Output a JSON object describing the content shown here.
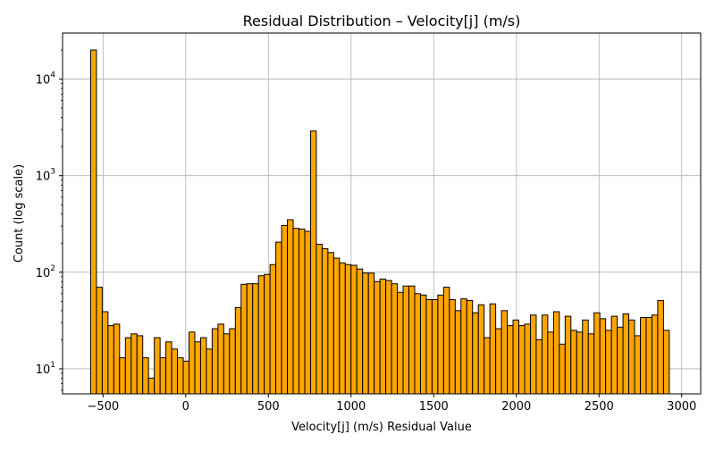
{
  "chart_data": {
    "type": "bar",
    "title": "Residual Distribution – Velocity[j] (m/s)",
    "xlabel": "Velocity[j] (m/s) Residual Value",
    "ylabel": "Count (log scale)",
    "yscale": "log",
    "xlim": [
      -745,
      3115
    ],
    "ylim": [
      5.5,
      30000
    ],
    "grid": true,
    "bar_color": "#FFA500",
    "edge_color": "#000000",
    "x_ticks": [
      {
        "value": -500,
        "label": "−500"
      },
      {
        "value": 0,
        "label": "0"
      },
      {
        "value": 500,
        "label": "500"
      },
      {
        "value": 1000,
        "label": "1000"
      },
      {
        "value": 1500,
        "label": "1500"
      },
      {
        "value": 2000,
        "label": "2000"
      },
      {
        "value": 2500,
        "label": "2500"
      },
      {
        "value": 3000,
        "label": "3000"
      }
    ],
    "y_ticks": [
      {
        "value": 10,
        "base": "10",
        "exp": "1"
      },
      {
        "value": 100,
        "base": "10",
        "exp": "2"
      },
      {
        "value": 1000,
        "base": "10",
        "exp": "3"
      },
      {
        "value": 10000,
        "base": "10",
        "exp": "4"
      }
    ],
    "bins": {
      "start": -575,
      "width": 35,
      "counts": [
        20000,
        70,
        39,
        28,
        29,
        13,
        21,
        23,
        22,
        13,
        8,
        21,
        13,
        19,
        16,
        13,
        12,
        24,
        19,
        21,
        16,
        26,
        29,
        23,
        26,
        43,
        75,
        76,
        76,
        92,
        95,
        120,
        205,
        305,
        350,
        285,
        280,
        265,
        2900,
        195,
        175,
        160,
        140,
        125,
        120,
        118,
        108,
        98,
        98,
        80,
        85,
        82,
        76,
        62,
        72,
        72,
        60,
        58,
        52,
        52,
        58,
        70,
        52,
        40,
        53,
        51,
        38,
        46,
        21,
        47,
        26,
        40,
        28,
        32,
        28,
        29,
        36,
        20,
        36,
        24,
        39,
        18,
        35,
        25,
        24,
        32,
        23,
        38,
        33,
        25,
        35,
        27,
        37,
        32,
        22,
        34,
        34,
        36,
        51,
        25
      ]
    }
  }
}
